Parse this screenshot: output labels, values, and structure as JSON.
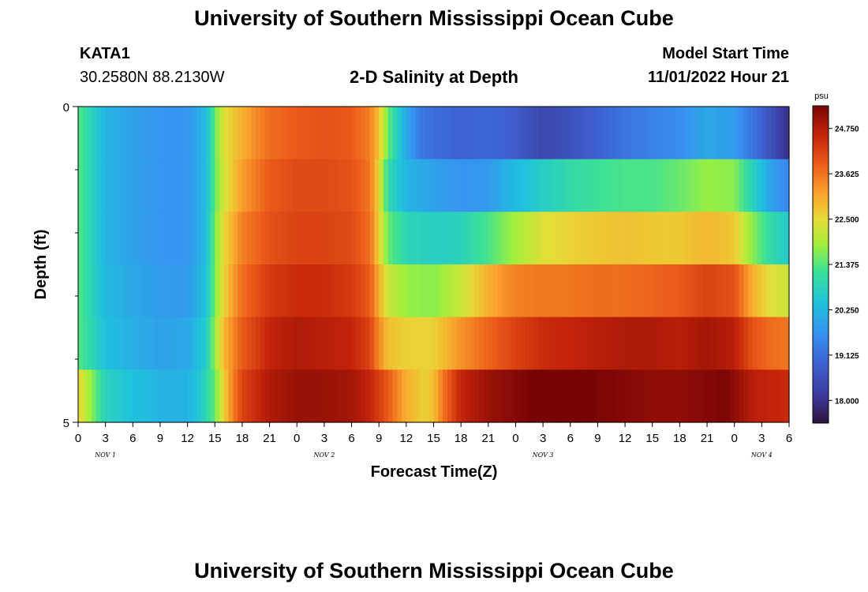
{
  "page": {
    "title_top": "University of Southern Mississippi Ocean Cube",
    "title_bottom": "University of Southern Mississippi Ocean Cube",
    "station_id": "KATA1",
    "station_coords": "30.2580N  88.2130W",
    "plot_title": "2-D Salinity at Depth",
    "model_start_label": "Model Start Time",
    "model_start_value": "11/01/2022 Hour 21"
  },
  "chart_data": {
    "type": "heatmap",
    "title": "2-D Salinity at Depth",
    "xlabel": "Forecast Time(Z)",
    "ylabel": "Depth (ft)",
    "y_tick_labels": [
      "0",
      "5"
    ],
    "ylim": [
      0,
      5
    ],
    "x_tick_labels": [
      "0",
      "3",
      "6",
      "9",
      "12",
      "15",
      "18",
      "21",
      "0",
      "3",
      "6",
      "9",
      "12",
      "15",
      "18",
      "21",
      "0",
      "3",
      "6",
      "9",
      "12",
      "15",
      "18",
      "21",
      "0",
      "3",
      "6"
    ],
    "day_labels": [
      {
        "text": "NOV 1",
        "hour": 3
      },
      {
        "text": "NOV 2",
        "hour": 27
      },
      {
        "text": "NOV 3",
        "hour": 51
      },
      {
        "text": "NOV 4",
        "hour": 75
      }
    ],
    "x_hours_range": [
      0,
      78
    ],
    "depth_layers": 5,
    "colorbar": {
      "unit": "psu",
      "min": 17.4375,
      "max": 25.3125,
      "tick_labels": [
        "18.000",
        "19.125",
        "20.250",
        "21.375",
        "22.500",
        "23.625",
        "24.750"
      ]
    },
    "series": [
      {
        "name": "layer 1",
        "hours": [
          0,
          1.5,
          3,
          6,
          9,
          12,
          14,
          15,
          16,
          18,
          21,
          24,
          27,
          30,
          32,
          33,
          34,
          36,
          37.5,
          39,
          42,
          45,
          48,
          51,
          54,
          57,
          60,
          63,
          66,
          69,
          72,
          74,
          76,
          78
        ],
        "values": [
          21.4,
          20.8,
          20.2,
          19.9,
          19.7,
          19.7,
          20.3,
          21.5,
          22.4,
          23.0,
          23.7,
          23.9,
          24.0,
          23.9,
          23.5,
          22.8,
          21.5,
          20.0,
          19.3,
          19.1,
          18.9,
          19.0,
          18.8,
          18.4,
          18.6,
          18.9,
          19.2,
          19.4,
          19.6,
          20.0,
          19.8,
          19.2,
          18.6,
          17.9
        ]
      },
      {
        "name": "layer 2",
        "hours": [
          0,
          1.5,
          3,
          6,
          9,
          12,
          14,
          15,
          16,
          18,
          21,
          24,
          27,
          30,
          32,
          33,
          34,
          36,
          39,
          42,
          45,
          48,
          51,
          54,
          57,
          60,
          63,
          66,
          69,
          72,
          74,
          76,
          78
        ],
        "values": [
          21.4,
          20.8,
          20.2,
          19.9,
          19.7,
          19.7,
          20.3,
          21.5,
          22.3,
          23.2,
          23.9,
          24.1,
          24.1,
          24.0,
          23.6,
          22.5,
          21.0,
          20.2,
          19.9,
          19.7,
          19.8,
          20.3,
          20.7,
          21.0,
          21.2,
          21.3,
          21.3,
          21.5,
          21.8,
          21.7,
          20.8,
          19.9,
          19.5
        ]
      },
      {
        "name": "layer 3",
        "hours": [
          0,
          1.5,
          3,
          6,
          9,
          12,
          14,
          15,
          16,
          18,
          21,
          24,
          27,
          30,
          32,
          33,
          34,
          36,
          39,
          42,
          45,
          48,
          51,
          54,
          57,
          60,
          63,
          66,
          69,
          72,
          74,
          76,
          78
        ],
        "values": [
          21.4,
          20.8,
          20.2,
          19.9,
          19.7,
          19.7,
          20.3,
          21.6,
          22.5,
          23.5,
          24.0,
          24.2,
          24.2,
          24.1,
          23.7,
          22.6,
          21.5,
          20.9,
          20.7,
          20.8,
          21.3,
          21.9,
          22.4,
          22.6,
          22.7,
          22.8,
          22.7,
          22.7,
          22.9,
          22.7,
          21.7,
          21.0,
          20.6
        ]
      },
      {
        "name": "layer 4",
        "hours": [
          0,
          1.5,
          3,
          6,
          9,
          12,
          14,
          15,
          16,
          18,
          21,
          24,
          27,
          30,
          32,
          33,
          34,
          36,
          39,
          42,
          45,
          48,
          51,
          54,
          57,
          60,
          63,
          66,
          69,
          72,
          74,
          76,
          78
        ],
        "values": [
          21.4,
          20.8,
          20.3,
          20.0,
          19.8,
          19.8,
          20.4,
          21.6,
          22.6,
          23.7,
          24.3,
          24.5,
          24.5,
          24.3,
          23.9,
          23.0,
          22.2,
          21.8,
          21.7,
          22.2,
          23.0,
          23.5,
          23.6,
          23.6,
          23.7,
          23.7,
          23.8,
          23.9,
          24.2,
          24.0,
          23.0,
          22.4,
          22.2
        ]
      },
      {
        "name": "layer 5",
        "hours": [
          0,
          1.5,
          3,
          6,
          9,
          12,
          14,
          15,
          16,
          18,
          21,
          24,
          27,
          30,
          32,
          33,
          34,
          36,
          39,
          42,
          45,
          48,
          51,
          54,
          57,
          60,
          63,
          66,
          69,
          72,
          74,
          76,
          78
        ],
        "values": [
          21.4,
          20.9,
          20.4,
          20.1,
          19.9,
          20.0,
          20.6,
          21.8,
          22.9,
          23.9,
          24.6,
          24.8,
          24.7,
          24.6,
          24.2,
          23.4,
          22.8,
          22.6,
          22.6,
          23.3,
          23.8,
          24.2,
          24.5,
          24.6,
          24.7,
          24.8,
          24.8,
          24.7,
          24.9,
          24.7,
          24.0,
          23.7,
          23.6
        ]
      }
    ],
    "bottom_row": {
      "name": "bottom",
      "hours": [
        0,
        1,
        2,
        3,
        6,
        9,
        12,
        13.5,
        15,
        16,
        17,
        18,
        21,
        24,
        27,
        30,
        32,
        34,
        36,
        38,
        39,
        40,
        42,
        45,
        48,
        51,
        54,
        57,
        60,
        63,
        66,
        69,
        71,
        72,
        74,
        76,
        78
      ],
      "values": [
        22.6,
        22.0,
        21.4,
        20.8,
        20.4,
        20.2,
        20.2,
        20.6,
        21.5,
        22.6,
        23.5,
        24.2,
        24.8,
        25.0,
        25.0,
        24.9,
        24.6,
        23.9,
        23.0,
        22.6,
        22.8,
        23.6,
        24.6,
        25.0,
        25.2,
        25.4,
        25.4,
        25.3,
        25.2,
        25.1,
        25.1,
        25.2,
        25.3,
        25.1,
        24.7,
        24.6,
        24.5
      ]
    }
  }
}
